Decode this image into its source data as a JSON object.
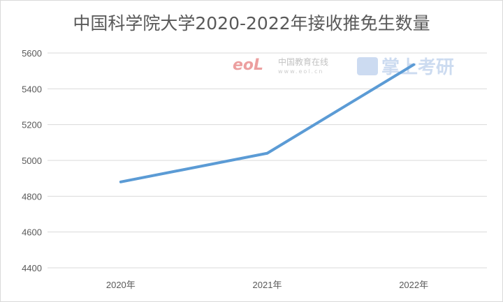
{
  "chart_data": {
    "type": "line",
    "title": "中国科学院大学2020-2022年接收推免生数量",
    "categories": [
      "2020年",
      "2021年",
      "2022年"
    ],
    "series": [
      {
        "values": [
          4880,
          5040,
          5535
        ],
        "color": "#5b9bd5"
      }
    ],
    "ylim": [
      4400,
      5600
    ],
    "yticks": [
      4400,
      4600,
      4800,
      5000,
      5200,
      5400,
      5600
    ],
    "grid": true,
    "legend": "none"
  },
  "watermarks": {
    "eol_logo": "eoL",
    "eol_text": "中国教育在线",
    "eol_url": "www.eol.cn",
    "kaoyan_text": "掌上考研"
  }
}
